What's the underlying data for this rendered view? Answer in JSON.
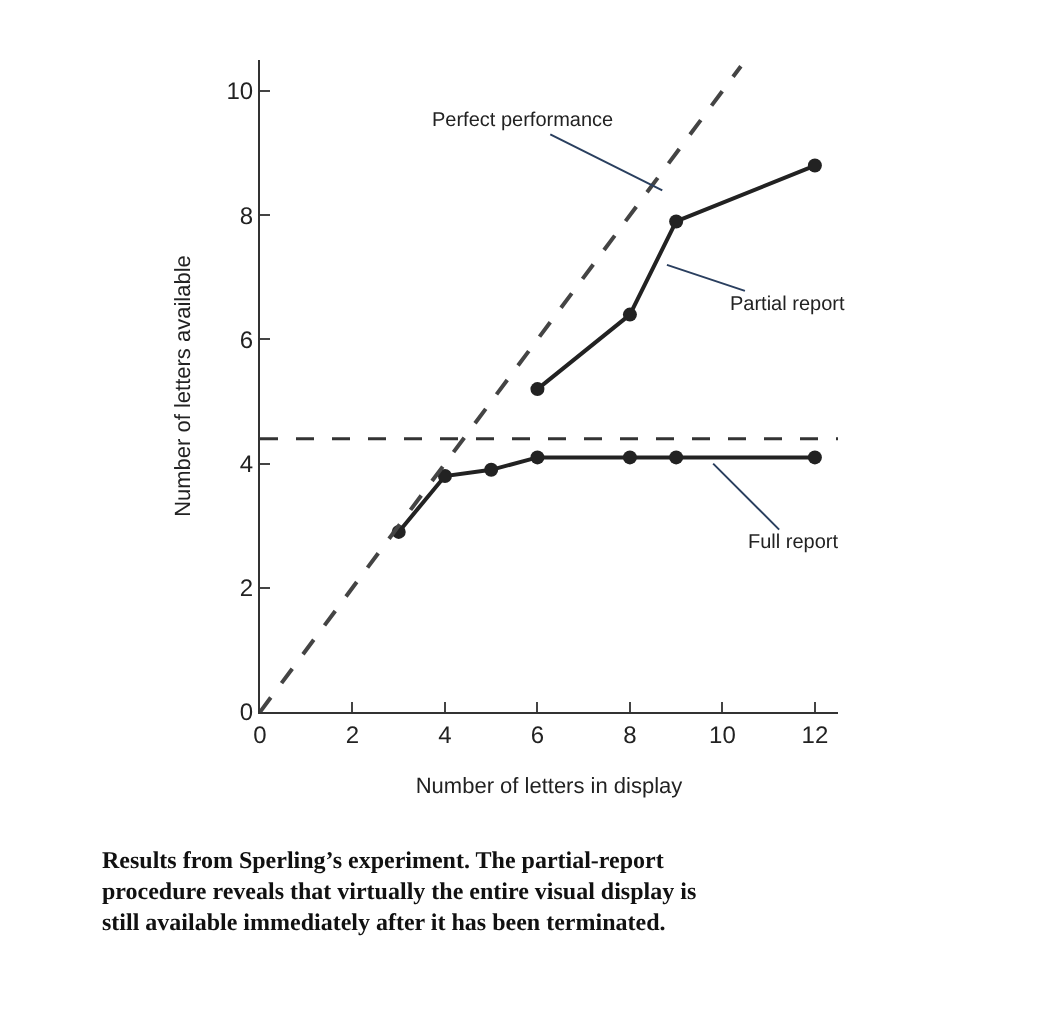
{
  "chart_data": {
    "type": "line",
    "xlabel": "Number of letters in display",
    "ylabel": "Number of letters available",
    "xlim": [
      0,
      12.5
    ],
    "ylim": [
      0,
      10.5
    ],
    "xticks": [
      0,
      2,
      4,
      6,
      8,
      10,
      12
    ],
    "yticks": [
      0,
      2,
      4,
      6,
      8,
      10
    ],
    "marker": "circle",
    "series": [
      {
        "color": "#222222",
        "x": [
          3,
          4,
          5,
          6,
          8,
          9,
          12
        ],
        "values": [
          2.9,
          3.8,
          3.9,
          4.1,
          4.1,
          4.1,
          4.1
        ]
      },
      {
        "color": "#222222",
        "x": [
          6,
          8,
          9,
          12
        ],
        "values": [
          5.2,
          6.4,
          7.9,
          8.8
        ]
      },
      {
        "color": "#444444",
        "x": [
          0,
          10.4
        ],
        "values": [
          0,
          10.4
        ],
        "marker": "none",
        "line_style": "dashed"
      }
    ],
    "ref_lines": [
      {
        "axis": "y",
        "value": 4.4,
        "color": "#333333",
        "line_style": "dashed"
      }
    ],
    "annotations": [
      {
        "text": "Perfect performance",
        "x": 8.7,
        "y": 8.4
      },
      {
        "text": "Partial report",
        "x": 8.8,
        "y": 7.2
      },
      {
        "text": "Full report",
        "x": 9.8,
        "y": 4.0
      },
      "Results from Sperling’s experiment. The partial-report procedure reveals that virtually the entire visual display is still available immediately after it has been terminated."
    ]
  }
}
